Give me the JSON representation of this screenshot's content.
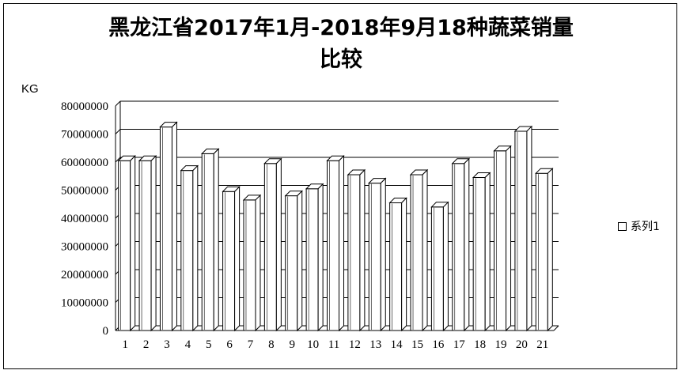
{
  "chart_data": {
    "type": "bar",
    "title": "黑龙江省2017年1月-2018年9月18种蔬菜销量比较",
    "title_lines": [
      "黑龙江省2017年1月-2018年9月18种蔬菜销量",
      "比较"
    ],
    "ylabel": "KG",
    "xlabel": "",
    "ylim": [
      0,
      80000000
    ],
    "yticks": [
      0,
      10000000,
      20000000,
      30000000,
      40000000,
      50000000,
      60000000,
      70000000,
      80000000
    ],
    "categories": [
      "1",
      "2",
      "3",
      "4",
      "5",
      "6",
      "7",
      "8",
      "9",
      "10",
      "11",
      "12",
      "13",
      "14",
      "15",
      "16",
      "17",
      "18",
      "19",
      "20",
      "21"
    ],
    "series": [
      {
        "name": "系列1",
        "values": [
          60500000,
          60500000,
          72500000,
          57000000,
          63000000,
          49500000,
          46500000,
          59500000,
          48000000,
          50500000,
          60500000,
          55500000,
          52500000,
          45500000,
          55500000,
          44000000,
          59500000,
          54500000,
          64000000,
          71000000,
          56000000
        ]
      }
    ],
    "grid": true,
    "legend_position": "right",
    "style": "3d-bar",
    "bar_fill": "#ffffff",
    "bar_stroke": "#000000"
  }
}
